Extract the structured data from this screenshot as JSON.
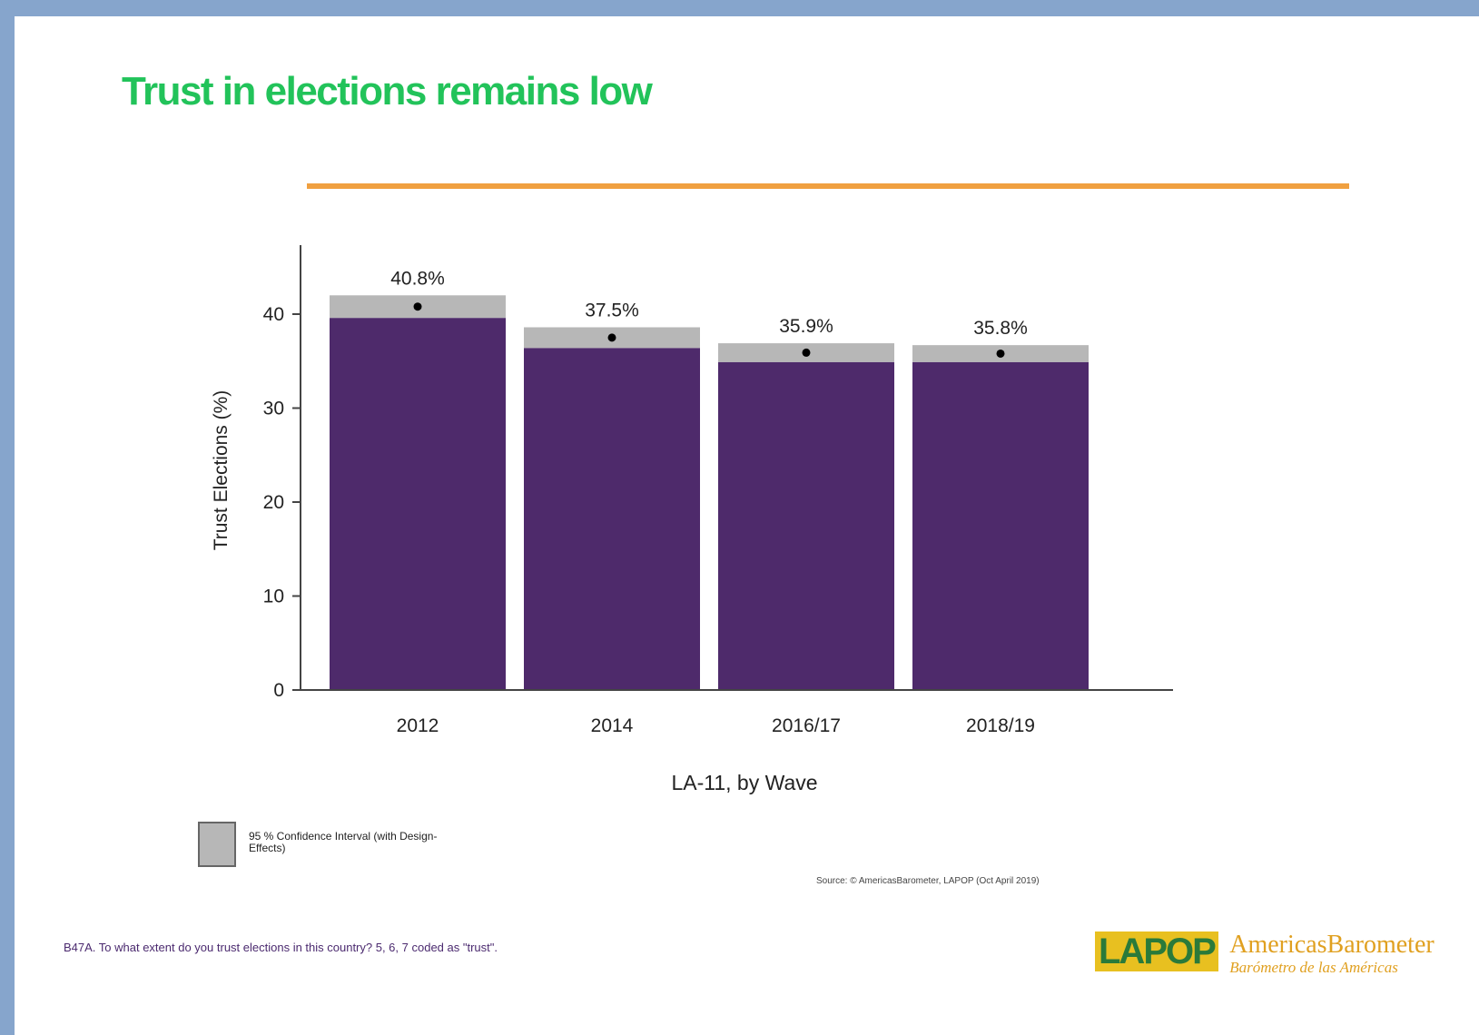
{
  "slide": {
    "title": "Trust in elections remains low",
    "legend_label": "95 % Confidence Interval (with Design-Effects)",
    "source": "Source: © AmericasBarometer, LAPOP (Oct April 2019)",
    "footnote": "B47A. To what extent do you trust elections in this country? 5, 6, 7 coded as \"trust\".",
    "logo_mark": "LAPOP",
    "logo_name": "AmericasBarometer",
    "logo_sub": "Barómetro de las Américas"
  },
  "colors": {
    "title": "#22c35a",
    "rule": "#f0a040",
    "bar": "#4e2a6b",
    "ci": "#b7b7b7"
  },
  "chart_data": {
    "type": "bar",
    "categories": [
      "2012",
      "2014",
      "2016/17",
      "2018/19"
    ],
    "values": [
      40.8,
      37.5,
      35.9,
      35.8
    ],
    "value_labels": [
      "40.8%",
      "37.5%",
      "35.9%",
      "35.8%"
    ],
    "ci_low": [
      39.6,
      36.4,
      34.9,
      34.9
    ],
    "ci_high": [
      42.0,
      38.6,
      36.9,
      36.7
    ],
    "ylabel": "Trust Elections (%)",
    "xlabel": "LA-11, by Wave",
    "ylim": [
      0,
      47
    ],
    "yticks": [
      0,
      10,
      20,
      30,
      40
    ],
    "grid": false,
    "legend": "bottom-left"
  }
}
